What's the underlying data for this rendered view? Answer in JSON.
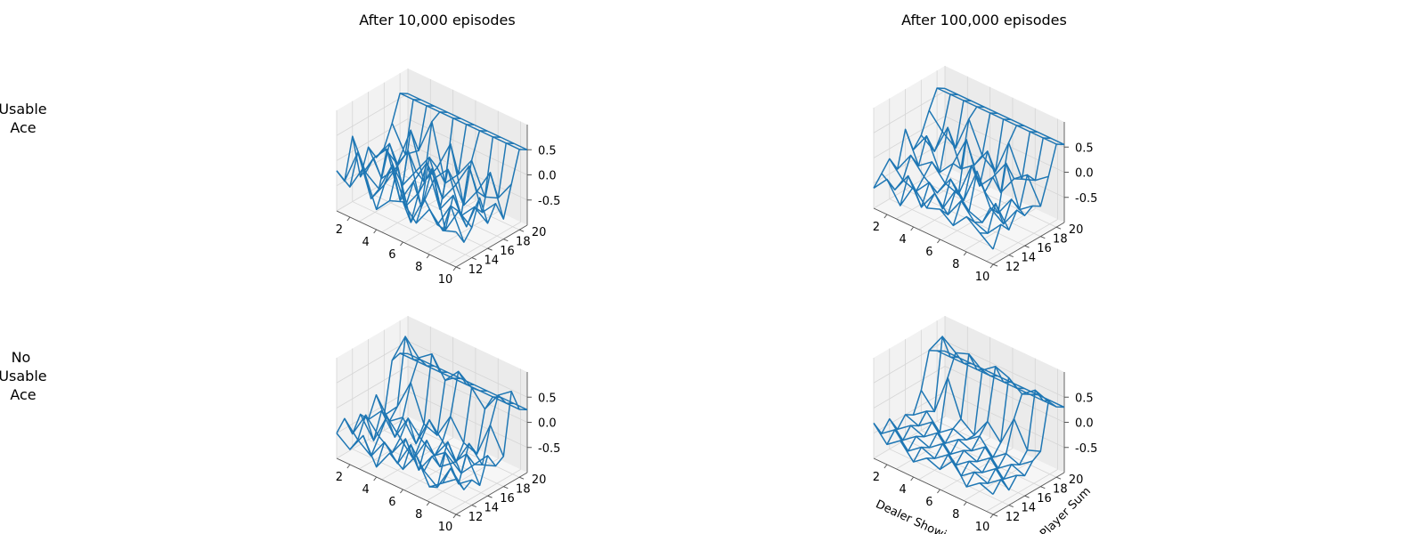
{
  "figure": {
    "col_titles": [
      "After 10,000 episodes",
      "After 100,000 episodes"
    ],
    "row_labels": [
      [
        "Usable",
        "Ace"
      ],
      [
        "No",
        "Usable",
        "Ace"
      ]
    ]
  },
  "chart_data": [
    {
      "type": "surface",
      "title": "After 10,000 episodes",
      "row": "Usable Ace",
      "xlabel": "",
      "ylabel": "",
      "x_ticks": [
        "2",
        "4",
        "6",
        "8",
        "10"
      ],
      "y_ticks": [
        "12",
        "14",
        "16",
        "18",
        "20"
      ],
      "z_ticks": [
        "0.5",
        "0.0",
        "-0.5"
      ],
      "x": [
        1,
        2,
        3,
        4,
        5,
        6,
        7,
        8,
        9,
        10
      ],
      "y": [
        12,
        13,
        14,
        15,
        16,
        17,
        18,
        19,
        20,
        21
      ],
      "z": [
        [
          -0.2,
          -0.4,
          0.1,
          -0.6,
          -0.3,
          -0.2,
          -0.5,
          -0.1,
          -0.4,
          -0.3
        ],
        [
          -0.5,
          0.2,
          -0.6,
          -0.2,
          0.3,
          -0.7,
          -0.1,
          -0.5,
          0.0,
          -0.6
        ],
        [
          0.3,
          -0.3,
          -0.5,
          0.1,
          -0.6,
          -0.2,
          0.4,
          -0.7,
          -0.2,
          -0.4
        ],
        [
          -0.6,
          -0.1,
          0.2,
          -0.7,
          -0.2,
          0.3,
          -0.5,
          -0.1,
          -0.6,
          0.1
        ],
        [
          -0.1,
          -0.6,
          -0.3,
          0.2,
          -0.8,
          -0.1,
          0.2,
          -0.6,
          -0.3,
          -0.5
        ],
        [
          -0.4,
          0.0,
          -0.7,
          -0.3,
          0.1,
          -0.6,
          -0.2,
          0.3,
          -0.5,
          -0.2
        ],
        [
          -0.3,
          -0.5,
          0.3,
          -0.6,
          -0.2,
          0.4,
          -0.7,
          -0.3,
          0.2,
          -0.6
        ],
        [
          0.1,
          -0.4,
          -0.2,
          0.5,
          -0.6,
          -0.3,
          0.1,
          -0.5,
          -0.4,
          0.0
        ],
        [
          0.6,
          0.6,
          0.6,
          0.6,
          0.6,
          0.6,
          0.6,
          0.6,
          0.6,
          0.6
        ],
        [
          0.5,
          0.5,
          0.5,
          0.5,
          0.5,
          0.5,
          0.5,
          0.5,
          0.5,
          0.5
        ]
      ],
      "zlim": [
        -1,
        1
      ],
      "grid": true,
      "color": "#1f77b4"
    },
    {
      "type": "surface",
      "title": "After 100,000 episodes",
      "row": "Usable Ace",
      "xlabel": "",
      "ylabel": "",
      "x_ticks": [
        "2",
        "4",
        "6",
        "8",
        "10"
      ],
      "y_ticks": [
        "12",
        "14",
        "16",
        "18",
        "20"
      ],
      "z_ticks": [
        "0.5",
        "0.0",
        "-0.5"
      ],
      "x": [
        1,
        2,
        3,
        4,
        5,
        6,
        7,
        8,
        9,
        10
      ],
      "y": [
        12,
        13,
        14,
        15,
        16,
        17,
        18,
        19,
        20,
        21
      ],
      "z": [
        [
          -0.6,
          -0.3,
          -0.7,
          -0.2,
          -0.5,
          -0.4,
          -0.6,
          -0.3,
          -0.5,
          -0.7
        ],
        [
          -0.4,
          -0.6,
          -0.2,
          -0.7,
          -0.3,
          -0.6,
          -0.2,
          -0.5,
          -0.6,
          -0.3
        ],
        [
          -0.2,
          -0.5,
          -0.6,
          -0.3,
          -0.7,
          -0.2,
          -0.5,
          -0.6,
          -0.1,
          -0.5
        ],
        [
          -0.5,
          -0.1,
          -0.4,
          -0.6,
          -0.2,
          -0.5,
          0.2,
          -0.4,
          -0.6,
          -0.2
        ],
        [
          0.2,
          -0.4,
          -0.2,
          -0.5,
          -0.6,
          0.1,
          -0.3,
          -0.6,
          -0.2,
          -0.4
        ],
        [
          -0.3,
          0.1,
          -0.5,
          -0.2,
          0.4,
          -0.4,
          -0.1,
          0.3,
          -0.5,
          -0.3
        ],
        [
          -0.1,
          -0.3,
          0.3,
          -0.4,
          -0.2,
          0.2,
          -0.5,
          -0.1,
          0.1,
          -0.4
        ],
        [
          0.3,
          0.0,
          -0.2,
          0.5,
          -0.1,
          -0.3,
          0.4,
          -0.2,
          -0.1,
          0.1
        ],
        [
          0.65,
          0.65,
          0.65,
          0.65,
          0.65,
          0.65,
          0.65,
          0.65,
          0.65,
          0.65
        ],
        [
          0.55,
          0.55,
          0.55,
          0.55,
          0.55,
          0.55,
          0.55,
          0.55,
          0.55,
          0.55
        ]
      ],
      "zlim": [
        -1,
        1
      ],
      "grid": true,
      "color": "#1f77b4"
    },
    {
      "type": "surface",
      "title": "",
      "row": "No Usable Ace",
      "xlabel": "",
      "ylabel": "",
      "x_ticks": [
        "2",
        "4",
        "6",
        "8",
        "10"
      ],
      "y_ticks": [
        "12",
        "14",
        "16",
        "18",
        "20"
      ],
      "z_ticks": [
        "0.5",
        "0.0",
        "-0.5"
      ],
      "x": [
        1,
        2,
        3,
        4,
        5,
        6,
        7,
        8,
        9,
        10
      ],
      "y": [
        12,
        13,
        14,
        15,
        16,
        17,
        18,
        19,
        20,
        21
      ],
      "z": [
        [
          -0.5,
          -0.7,
          -0.3,
          -0.8,
          -0.4,
          -0.6,
          -0.2,
          -0.7,
          -0.5,
          -0.3
        ],
        [
          -0.3,
          -0.6,
          -0.8,
          -0.4,
          -0.7,
          -0.2,
          -0.6,
          -0.8,
          -0.3,
          -0.6
        ],
        [
          -0.7,
          -0.2,
          -0.5,
          -0.7,
          -0.3,
          -0.8,
          -0.4,
          -0.2,
          -0.7,
          -0.5
        ],
        [
          -0.4,
          -0.8,
          -0.2,
          -0.5,
          -0.8,
          -0.3,
          -0.7,
          -0.5,
          -0.2,
          -0.7
        ],
        [
          -0.6,
          -0.3,
          -0.7,
          -0.2,
          -0.5,
          -0.7,
          -0.3,
          -0.8,
          -0.5,
          -0.2
        ],
        [
          -0.2,
          -0.6,
          -0.4,
          -0.8,
          -0.2,
          -0.5,
          -0.8,
          -0.3,
          -0.6,
          -0.5
        ],
        [
          -0.7,
          -0.4,
          0.2,
          -0.5,
          -0.6,
          -0.1,
          -0.5,
          -0.6,
          0.1,
          -0.4
        ],
        [
          0.3,
          0.9,
          0.6,
          0.8,
          0.4,
          0.7,
          0.5,
          0.2,
          0.6,
          0.8
        ],
        [
          0.35,
          0.35,
          0.35,
          0.35,
          0.35,
          0.35,
          0.35,
          0.35,
          0.35,
          0.35
        ],
        [
          0.25,
          0.25,
          0.25,
          0.25,
          0.25,
          0.25,
          0.25,
          0.25,
          0.25,
          0.25
        ]
      ],
      "zlim": [
        -1,
        1
      ],
      "grid": true,
      "color": "#1f77b4"
    },
    {
      "type": "surface",
      "title": "",
      "row": "No Usable Ace",
      "xlabel": "Dealer Showi",
      "ylabel": "Player Sum",
      "x_ticks": [
        "2",
        "4",
        "6",
        "8",
        "10"
      ],
      "y_ticks": [
        "12",
        "14",
        "16",
        "18",
        "20"
      ],
      "z_ticks": [
        "0.5",
        "0.0",
        "-0.5"
      ],
      "x": [
        1,
        2,
        3,
        4,
        5,
        6,
        7,
        8,
        9,
        10
      ],
      "y": [
        12,
        13,
        14,
        15,
        16,
        17,
        18,
        19,
        20,
        21
      ],
      "z": [
        [
          -0.3,
          -0.6,
          -0.4,
          -0.7,
          -0.5,
          -0.6,
          -0.3,
          -0.7,
          -0.5,
          -0.6
        ],
        [
          -0.6,
          -0.4,
          -0.7,
          -0.5,
          -0.6,
          -0.4,
          -0.7,
          -0.5,
          -0.6,
          -0.4
        ],
        [
          -0.4,
          -0.7,
          -0.5,
          -0.6,
          -0.4,
          -0.7,
          -0.5,
          -0.6,
          -0.4,
          -0.7
        ],
        [
          -0.7,
          -0.5,
          -0.6,
          -0.4,
          -0.7,
          -0.5,
          -0.6,
          -0.4,
          -0.7,
          -0.5
        ],
        [
          -0.5,
          -0.6,
          -0.4,
          -0.7,
          -0.5,
          -0.6,
          -0.4,
          -0.7,
          -0.5,
          -0.6
        ],
        [
          -0.6,
          -0.4,
          -0.7,
          -0.5,
          -0.6,
          -0.4,
          -0.7,
          -0.5,
          -0.6,
          -0.4
        ],
        [
          -0.2,
          -0.5,
          0.3,
          -0.4,
          -0.6,
          -0.2,
          -0.5,
          0.1,
          -0.4,
          -0.3
        ],
        [
          0.5,
          0.9,
          0.7,
          0.8,
          0.6,
          0.8,
          0.7,
          0.5,
          0.7,
          0.6
        ],
        [
          0.4,
          0.4,
          0.4,
          0.4,
          0.4,
          0.4,
          0.4,
          0.4,
          0.4,
          0.4
        ],
        [
          0.3,
          0.3,
          0.3,
          0.3,
          0.3,
          0.3,
          0.3,
          0.3,
          0.3,
          0.3
        ]
      ],
      "zlim": [
        -1,
        1
      ],
      "grid": true,
      "color": "#1f77b4"
    }
  ]
}
